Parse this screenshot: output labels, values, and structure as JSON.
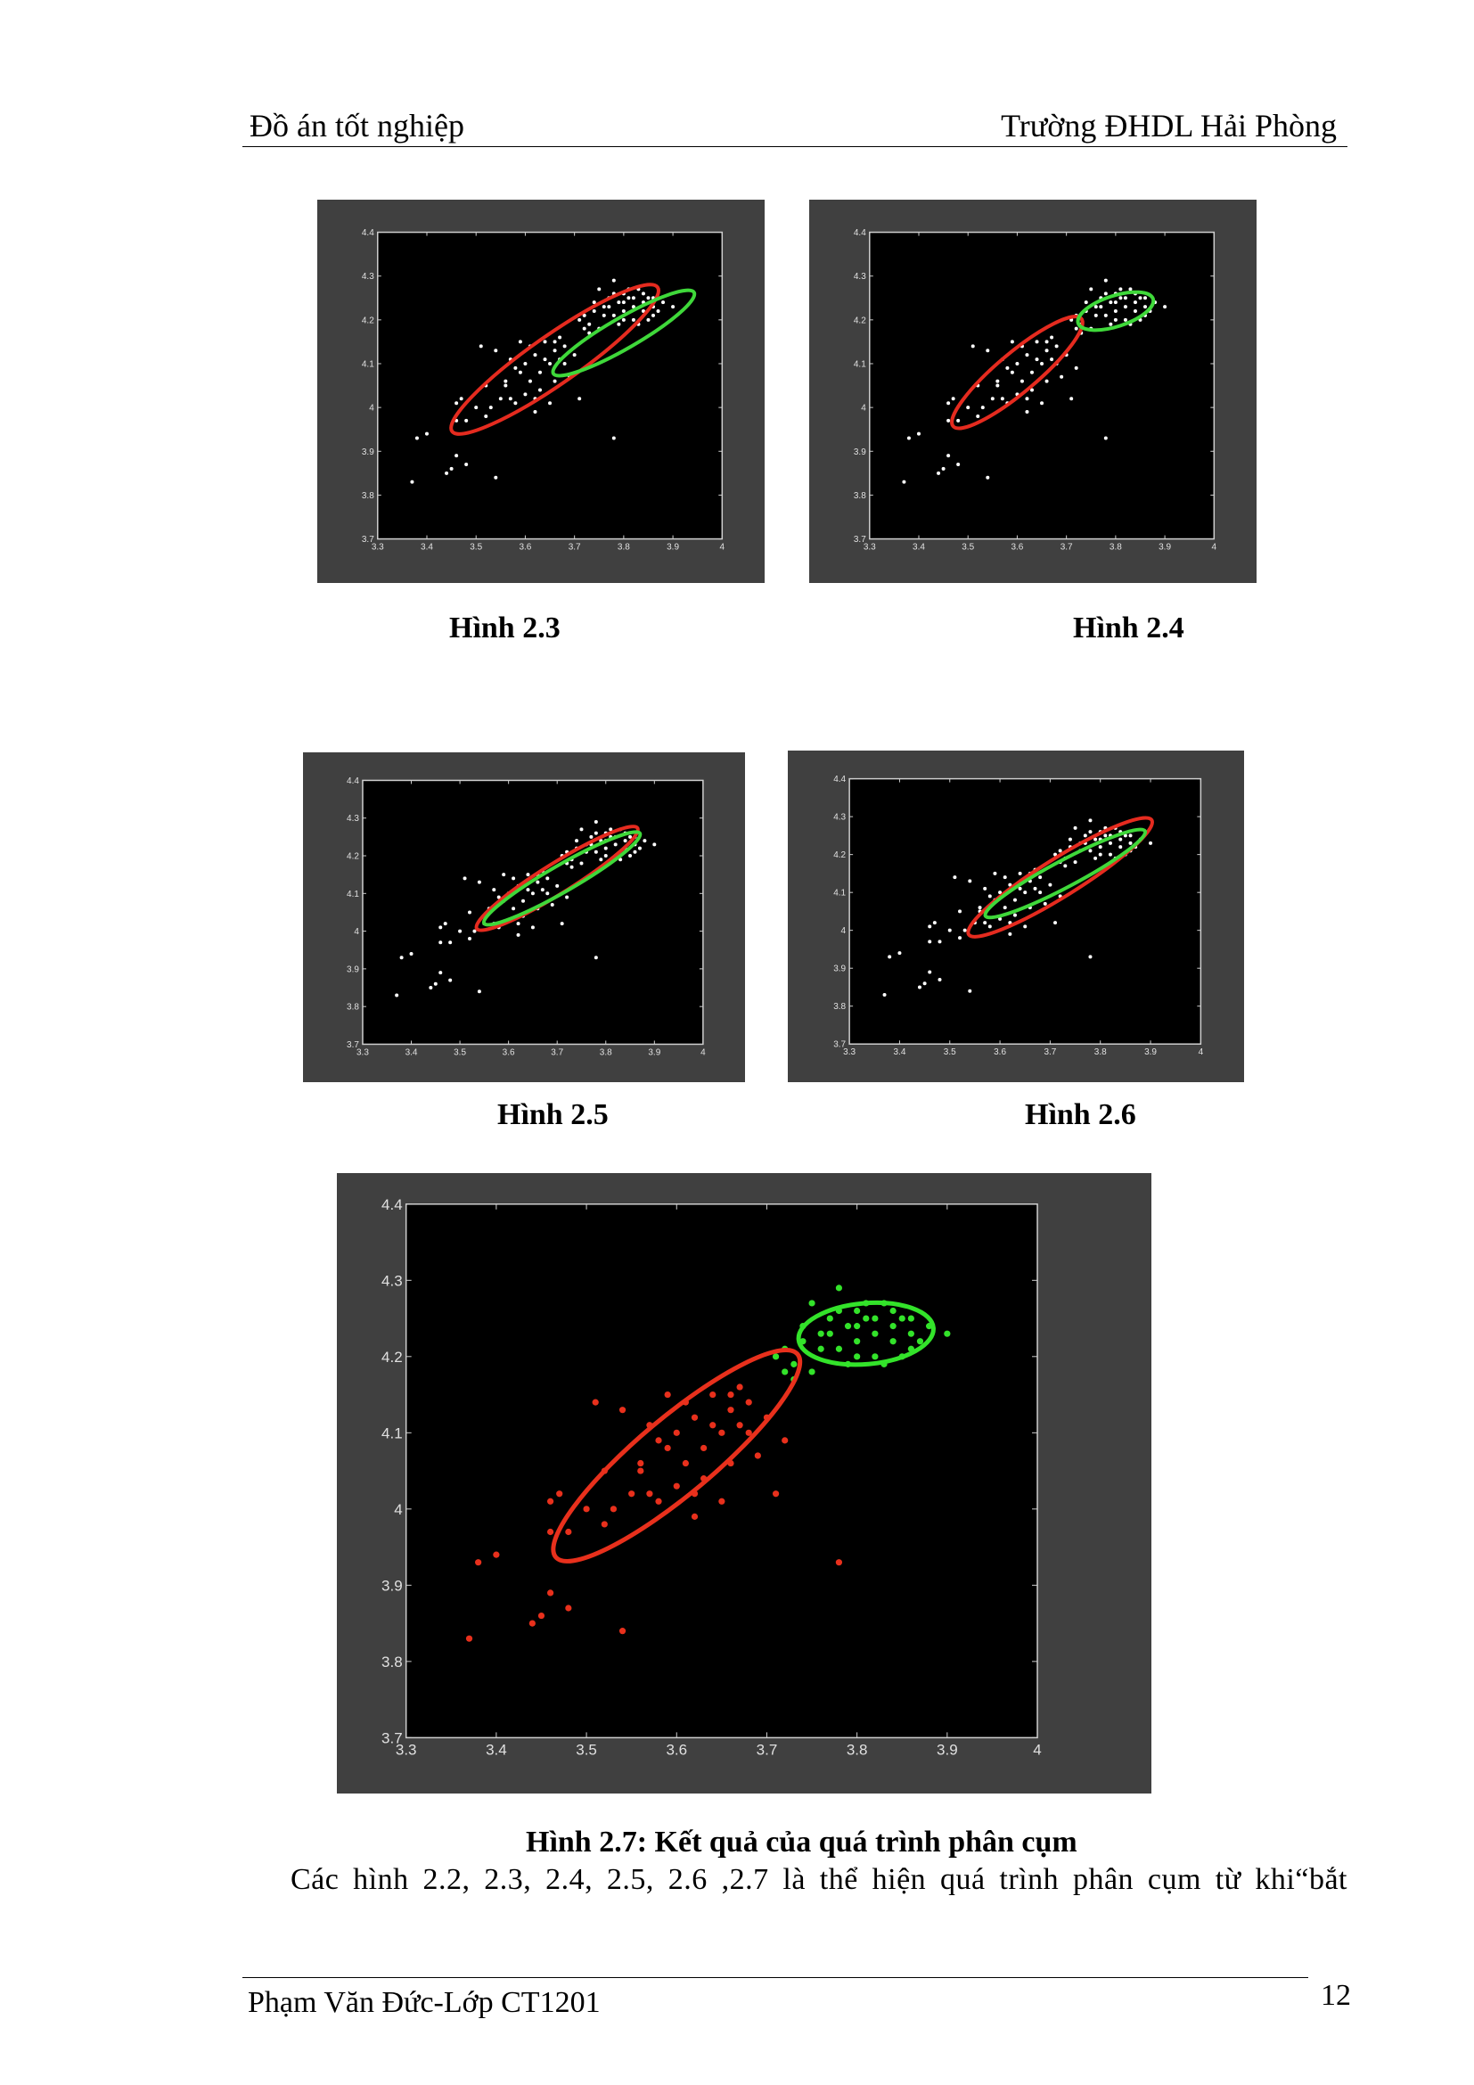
{
  "header": {
    "left": "Đồ án tốt nghiệp",
    "right": "Trường ĐHDL Hải Phòng"
  },
  "figures": [
    {
      "id": "fig-2-3",
      "caption": "Hình 2.3",
      "red": {
        "cx": 3.66,
        "cy": 4.11,
        "rx": 0.255,
        "ry": 0.055,
        "angle": 35
      },
      "green": {
        "cx": 3.8,
        "cy": 4.17,
        "rx": 0.165,
        "ry": 0.035,
        "angle": 30
      }
    },
    {
      "id": "fig-2-4",
      "caption": "Hình 2.4",
      "red": {
        "cx": 3.6,
        "cy": 4.08,
        "rx": 0.17,
        "ry": 0.045,
        "angle": 40
      },
      "green": {
        "cx": 3.8,
        "cy": 4.22,
        "rx": 0.08,
        "ry": 0.035,
        "angle": 18
      }
    },
    {
      "id": "fig-2-5",
      "caption": "Hình 2.5",
      "red": {
        "cx": 3.7,
        "cy": 4.14,
        "rx": 0.195,
        "ry": 0.04,
        "angle": 32
      },
      "green": {
        "cx": 3.71,
        "cy": 4.14,
        "rx": 0.185,
        "ry": 0.035,
        "angle": 30
      }
    },
    {
      "id": "fig-2-6",
      "caption": "Hình 2.6",
      "red": {
        "cx": 3.72,
        "cy": 4.14,
        "rx": 0.215,
        "ry": 0.05,
        "angle": 32
      },
      "green": {
        "cx": 3.73,
        "cy": 4.15,
        "rx": 0.18,
        "ry": 0.035,
        "angle": 28
      }
    }
  ],
  "main_figure": {
    "caption": "Hình 2.7: Kết quả của quá trình phân cụm",
    "chart_data": {
      "type": "scatter",
      "xlim": [
        3.3,
        4.0
      ],
      "ylim": [
        3.7,
        4.4
      ],
      "xticks": [
        "3.3",
        "3.4",
        "3.5",
        "3.6",
        "3.7",
        "3.8",
        "3.9",
        "4"
      ],
      "yticks": [
        "4.4",
        "4.3",
        "4.2",
        "4.1",
        "4",
        "3.9",
        "3.8",
        "3.7"
      ],
      "series": [
        {
          "color": "#e8301c",
          "points": [
            [
              3.37,
              3.83
            ],
            [
              3.38,
              3.93
            ],
            [
              3.4,
              3.94
            ],
            [
              3.44,
              3.85
            ],
            [
              3.45,
              3.86
            ],
            [
              3.46,
              3.89
            ],
            [
              3.46,
              4.01
            ],
            [
              3.47,
              4.02
            ],
            [
              3.46,
              3.97
            ],
            [
              3.48,
              3.87
            ],
            [
              3.5,
              4.0
            ],
            [
              3.51,
              4.14
            ],
            [
              3.52,
              3.98
            ],
            [
              3.54,
              3.84
            ],
            [
              3.54,
              4.13
            ],
            [
              3.56,
              4.05
            ],
            [
              3.57,
              4.02
            ],
            [
              3.58,
              4.09
            ],
            [
              3.59,
              4.08
            ],
            [
              3.6,
              4.1
            ],
            [
              3.61,
              4.06
            ],
            [
              3.62,
              4.12
            ],
            [
              3.63,
              4.08
            ],
            [
              3.64,
              4.15
            ],
            [
              3.65,
              4.1
            ],
            [
              3.66,
              4.13
            ],
            [
              3.67,
              4.11
            ],
            [
              3.68,
              4.14
            ],
            [
              3.62,
              4.02
            ],
            [
              3.6,
              4.03
            ],
            [
              3.65,
              4.01
            ],
            [
              3.55,
              4.02
            ],
            [
              3.53,
              4.0
            ],
            [
              3.69,
              4.07
            ],
            [
              3.71,
              4.02
            ],
            [
              3.72,
              4.09
            ],
            [
              3.66,
              4.06
            ],
            [
              3.63,
              4.04
            ],
            [
              3.58,
              4.01
            ],
            [
              3.61,
              4.14
            ],
            [
              3.67,
              4.16
            ],
            [
              3.7,
              4.12
            ],
            [
              3.59,
              4.15
            ],
            [
              3.64,
              4.11
            ],
            [
              3.68,
              4.1
            ],
            [
              3.56,
              4.06
            ],
            [
              3.62,
              3.99
            ],
            [
              3.57,
              4.11
            ],
            [
              3.66,
              4.15
            ],
            [
              3.78,
              3.93
            ],
            [
              3.48,
              3.97
            ],
            [
              3.52,
              4.05
            ]
          ],
          "ellipse": {
            "cx": 3.6,
            "cy": 4.07,
            "rx": 0.175,
            "ry": 0.05,
            "angle": 40
          }
        },
        {
          "color": "#33e32a",
          "points": [
            [
              3.71,
              4.2
            ],
            [
              3.72,
              4.21
            ],
            [
              3.73,
              4.19
            ],
            [
              3.74,
              4.22
            ],
            [
              3.75,
              4.27
            ],
            [
              3.76,
              4.23
            ],
            [
              3.77,
              4.25
            ],
            [
              3.78,
              4.29
            ],
            [
              3.78,
              4.21
            ],
            [
              3.79,
              4.24
            ],
            [
              3.8,
              4.22
            ],
            [
              3.8,
              4.26
            ],
            [
              3.81,
              4.25
            ],
            [
              3.82,
              4.2
            ],
            [
              3.82,
              4.23
            ],
            [
              3.83,
              4.27
            ],
            [
              3.84,
              4.22
            ],
            [
              3.84,
              4.24
            ],
            [
              3.85,
              4.25
            ],
            [
              3.86,
              4.21
            ],
            [
              3.86,
              4.23
            ],
            [
              3.87,
              4.22
            ],
            [
              3.88,
              4.24
            ],
            [
              3.9,
              4.23
            ],
            [
              3.79,
              4.19
            ],
            [
              3.81,
              4.27
            ],
            [
              3.83,
              4.19
            ],
            [
              3.85,
              4.2
            ],
            [
              3.77,
              4.23
            ],
            [
              3.76,
              4.21
            ],
            [
              3.74,
              4.24
            ],
            [
              3.8,
              4.24
            ],
            [
              3.82,
              4.25
            ],
            [
              3.78,
              4.26
            ],
            [
              3.84,
              4.26
            ],
            [
              3.86,
              4.25
            ],
            [
              3.75,
              4.18
            ],
            [
              3.73,
              4.17
            ],
            [
              3.72,
              4.18
            ],
            [
              3.8,
              4.2
            ]
          ],
          "ellipse": {
            "cx": 3.81,
            "cy": 4.23,
            "rx": 0.075,
            "ry": 0.04,
            "angle": 5
          }
        }
      ]
    }
  },
  "body_text": "Các hình 2.2, 2.3, 2.4, 2.5, 2.6 ,2.7 là thể hiện quá trình phân cụm từ khi“bắt",
  "footer": {
    "left": "Phạm Văn Đức-Lớp CT1201",
    "page": "12"
  }
}
